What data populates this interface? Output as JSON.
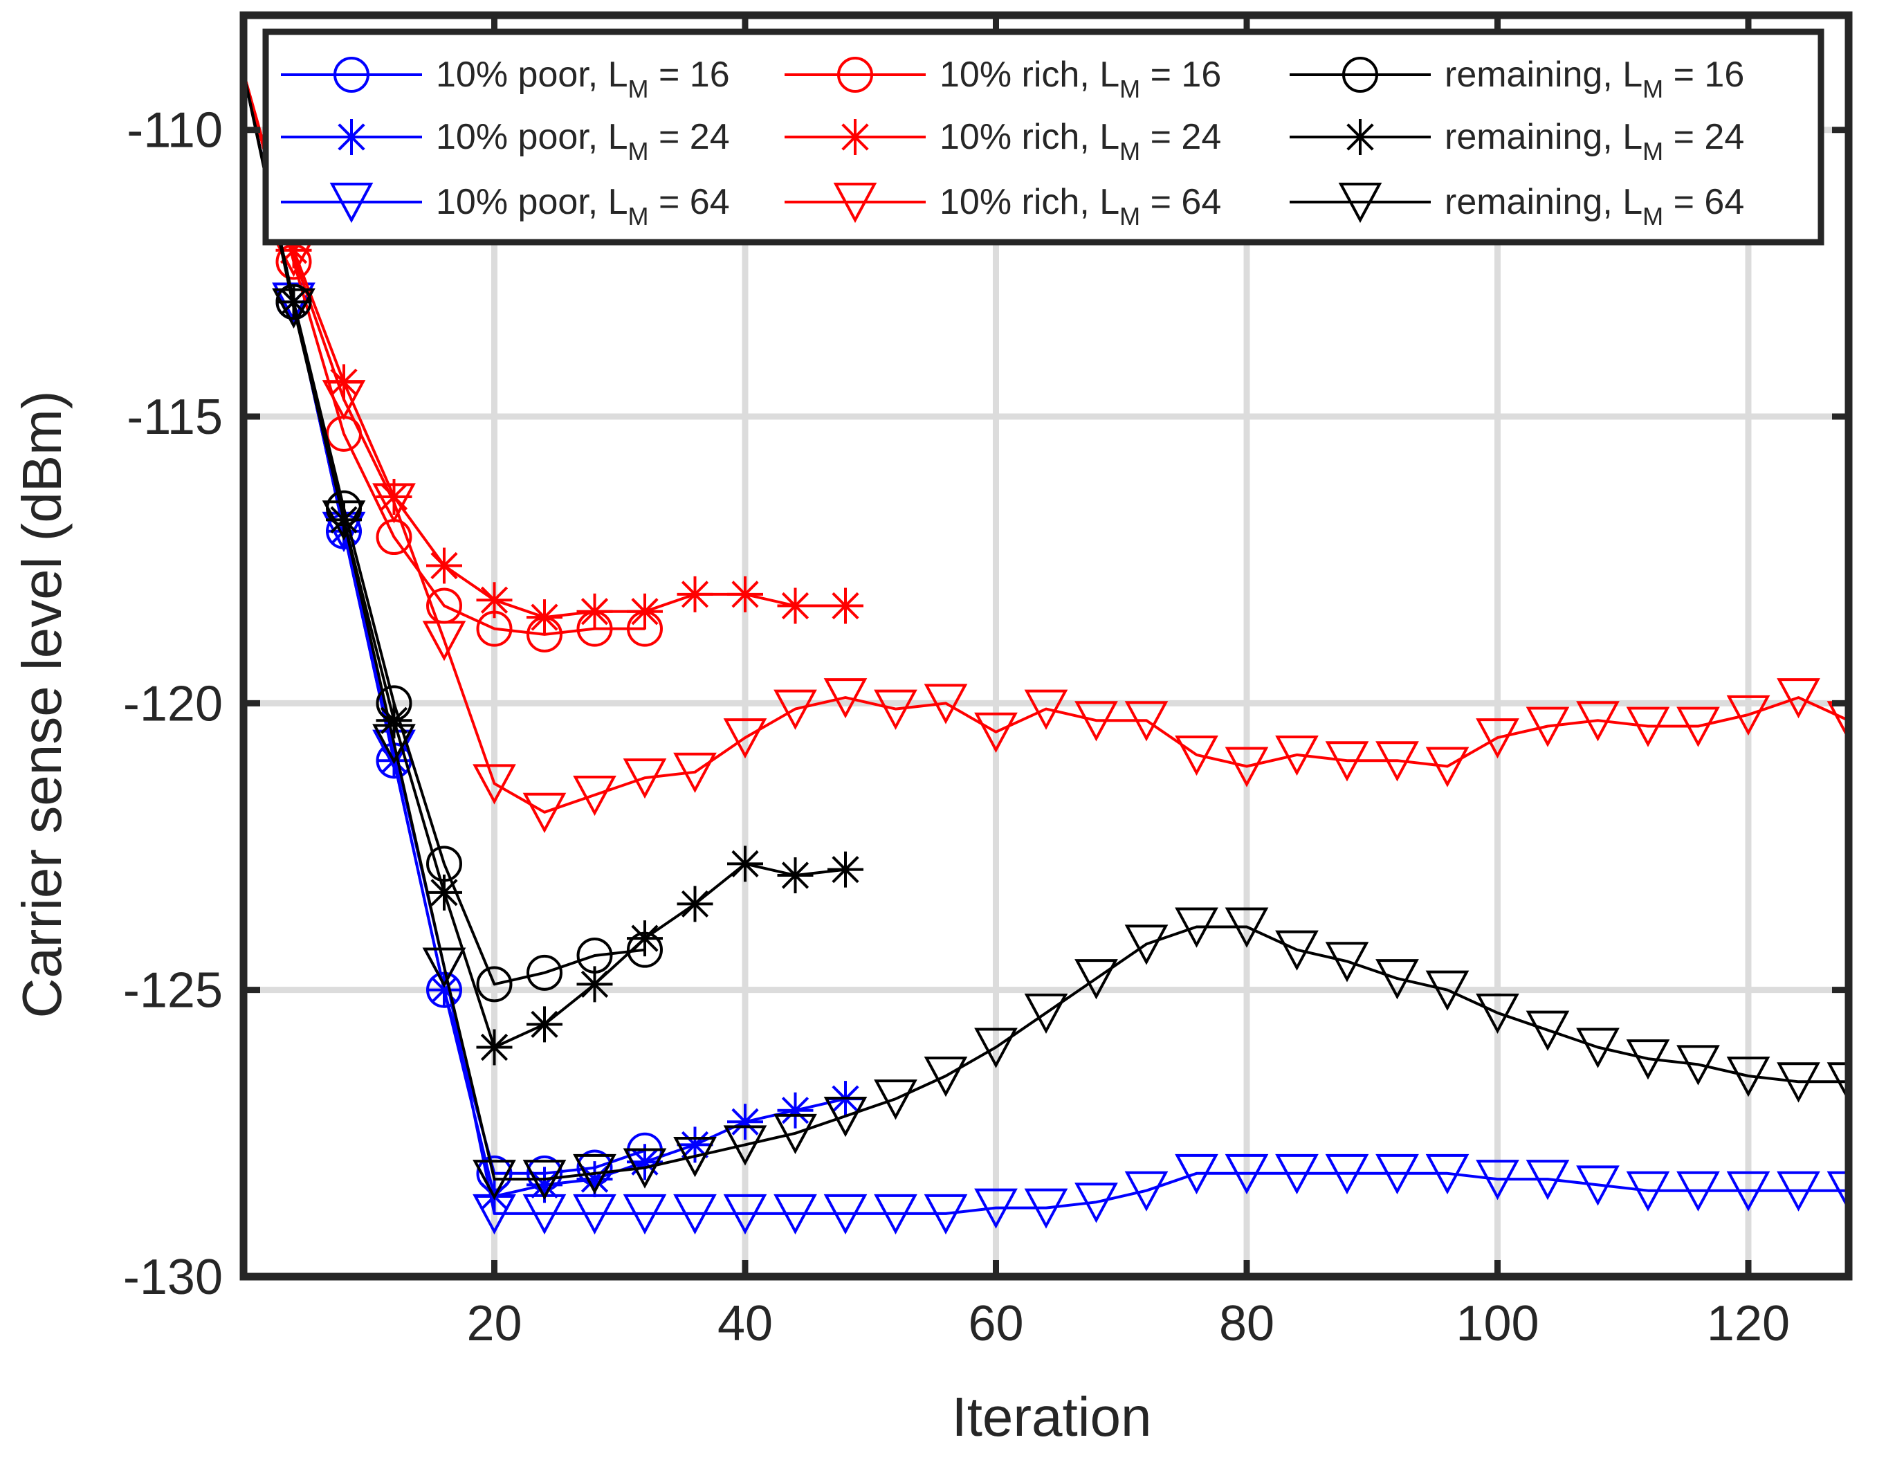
{
  "chart_data": {
    "type": "line",
    "title": "",
    "xlabel": "Iteration",
    "ylabel": "Carrier sense level (dBm)",
    "xlim": [
      0,
      128
    ],
    "ylim": [
      -130,
      -108
    ],
    "xticks": [
      20,
      40,
      60,
      80,
      100,
      120
    ],
    "yticks": [
      -130,
      -125,
      -120,
      -115,
      -110
    ],
    "xtick_labels": [
      "20",
      "40",
      "60",
      "80",
      "100",
      "120"
    ],
    "ytick_labels": [
      "-130",
      "-125",
      "-120",
      "-115",
      "-110"
    ],
    "grid": true,
    "legend_position": "top",
    "series": [
      {
        "name": "10% poor, L_M = 16",
        "label_main": "10% poor, L",
        "label_sub": "M",
        "label_tail": " = 16",
        "color": "#0000ff",
        "marker": "circle",
        "x": [
          0,
          4,
          8,
          12,
          16,
          20,
          24,
          28,
          32
        ],
        "y": [
          -109,
          -113,
          -117,
          -121,
          -125,
          -128.2,
          -128.2,
          -128.1,
          -127.8
        ]
      },
      {
        "name": "10% poor, L_M = 24",
        "label_main": "10% poor, L",
        "label_sub": "M",
        "label_tail": " = 24",
        "color": "#0000ff",
        "marker": "star",
        "x": [
          0,
          4,
          8,
          12,
          16,
          20,
          24,
          28,
          32,
          36,
          40,
          44,
          48
        ],
        "y": [
          -109,
          -113,
          -117,
          -121,
          -125,
          -128.6,
          -128.4,
          -128.3,
          -128,
          -127.7,
          -127.3,
          -127.1,
          -126.9
        ]
      },
      {
        "name": "10% poor, L_M = 64",
        "label_main": "10% poor, L",
        "label_sub": "M",
        "label_tail": " = 64",
        "color": "#0000ff",
        "marker": "triangle-down",
        "x": [
          0,
          4,
          8,
          12,
          16,
          20,
          24,
          28,
          32,
          36,
          40,
          44,
          48,
          52,
          56,
          60,
          64,
          68,
          72,
          76,
          80,
          84,
          88,
          92,
          96,
          100,
          104,
          108,
          112,
          116,
          120,
          124,
          128
        ],
        "y": [
          -109,
          -113,
          -117,
          -120.8,
          -124.6,
          -128.9,
          -128.9,
          -128.9,
          -128.9,
          -128.9,
          -128.9,
          -128.9,
          -128.9,
          -128.9,
          -128.9,
          -128.8,
          -128.8,
          -128.7,
          -128.5,
          -128.2,
          -128.2,
          -128.2,
          -128.2,
          -128.2,
          -128.2,
          -128.3,
          -128.3,
          -128.4,
          -128.5,
          -128.5,
          -128.5,
          -128.5,
          -128.5
        ]
      },
      {
        "name": "10% rich, L_M = 16",
        "label_main": "10% rich, L",
        "label_sub": "M",
        "label_tail": " = 16",
        "color": "#ff0000",
        "marker": "circle",
        "x": [
          0,
          4,
          8,
          12,
          16,
          20,
          24,
          28,
          32
        ],
        "y": [
          -109,
          -112.3,
          -115.3,
          -117.1,
          -118.3,
          -118.7,
          -118.8,
          -118.7,
          -118.7
        ]
      },
      {
        "name": "10% rich, L_M = 24",
        "label_main": "10% rich, L",
        "label_sub": "M",
        "label_tail": " = 24",
        "color": "#ff0000",
        "marker": "star",
        "x": [
          0,
          4,
          8,
          12,
          16,
          20,
          24,
          28,
          32,
          36,
          40,
          44,
          48
        ],
        "y": [
          -109,
          -112.1,
          -114.4,
          -116.4,
          -117.6,
          -118.2,
          -118.5,
          -118.4,
          -118.4,
          -118.1,
          -118.1,
          -118.3,
          -118.3
        ]
      },
      {
        "name": "10% rich, L_M = 64",
        "label_main": "10% rich, L",
        "label_sub": "M",
        "label_tail": " = 64",
        "color": "#ff0000",
        "marker": "triangle-down",
        "x": [
          0,
          4,
          8,
          12,
          16,
          20,
          24,
          28,
          32,
          36,
          40,
          44,
          48,
          52,
          56,
          60,
          64,
          68,
          72,
          76,
          80,
          84,
          88,
          92,
          96,
          100,
          104,
          108,
          112,
          116,
          120,
          124,
          128
        ],
        "y": [
          -109,
          -112.2,
          -114.7,
          -116.5,
          -118.9,
          -121.4,
          -121.9,
          -121.6,
          -121.3,
          -121.2,
          -120.6,
          -120.1,
          -119.9,
          -120.1,
          -120,
          -120.5,
          -120.1,
          -120.3,
          -120.3,
          -120.9,
          -121.1,
          -120.9,
          -121,
          -121,
          -121.1,
          -120.6,
          -120.4,
          -120.3,
          -120.4,
          -120.4,
          -120.2,
          -119.9,
          -120.3
        ]
      },
      {
        "name": "remaining, L_M = 16",
        "label_main": "remaining, L",
        "label_sub": "M",
        "label_tail": " = 16",
        "color": "#000000",
        "marker": "circle",
        "x": [
          0,
          4,
          8,
          12,
          16,
          20,
          24,
          28,
          32
        ],
        "y": [
          -109,
          -113,
          -116.6,
          -120,
          -122.8,
          -124.9,
          -124.7,
          -124.4,
          -124.3
        ]
      },
      {
        "name": "remaining, L_M = 24",
        "label_main": "remaining, L",
        "label_sub": "M",
        "label_tail": " = 24",
        "color": "#000000",
        "marker": "star",
        "x": [
          0,
          4,
          8,
          12,
          16,
          20,
          24,
          28,
          32,
          36,
          40,
          44,
          48
        ],
        "y": [
          -109,
          -113,
          -116.8,
          -120.3,
          -123.3,
          -126,
          -125.6,
          -124.9,
          -124.1,
          -123.5,
          -122.8,
          -123,
          -122.9
        ]
      },
      {
        "name": "remaining, L_M = 64",
        "label_main": "remaining, L",
        "label_sub": "M",
        "label_tail": " = 64",
        "color": "#000000",
        "marker": "triangle-down",
        "x": [
          0,
          4,
          8,
          12,
          16,
          20,
          24,
          28,
          32,
          36,
          40,
          44,
          48,
          52,
          56,
          60,
          64,
          68,
          72,
          76,
          80,
          84,
          88,
          92,
          96,
          100,
          104,
          108,
          112,
          116,
          120,
          124,
          128
        ],
        "y": [
          -109,
          -113.1,
          -116.8,
          -120.7,
          -124.6,
          -128.3,
          -128.3,
          -128.2,
          -128.1,
          -127.9,
          -127.7,
          -127.5,
          -127.2,
          -126.9,
          -126.5,
          -126,
          -125.4,
          -124.8,
          -124.2,
          -123.9,
          -123.9,
          -124.3,
          -124.5,
          -124.8,
          -125,
          -125.4,
          -125.7,
          -126,
          -126.2,
          -126.3,
          -126.5,
          -126.6,
          -126.6
        ]
      }
    ]
  }
}
